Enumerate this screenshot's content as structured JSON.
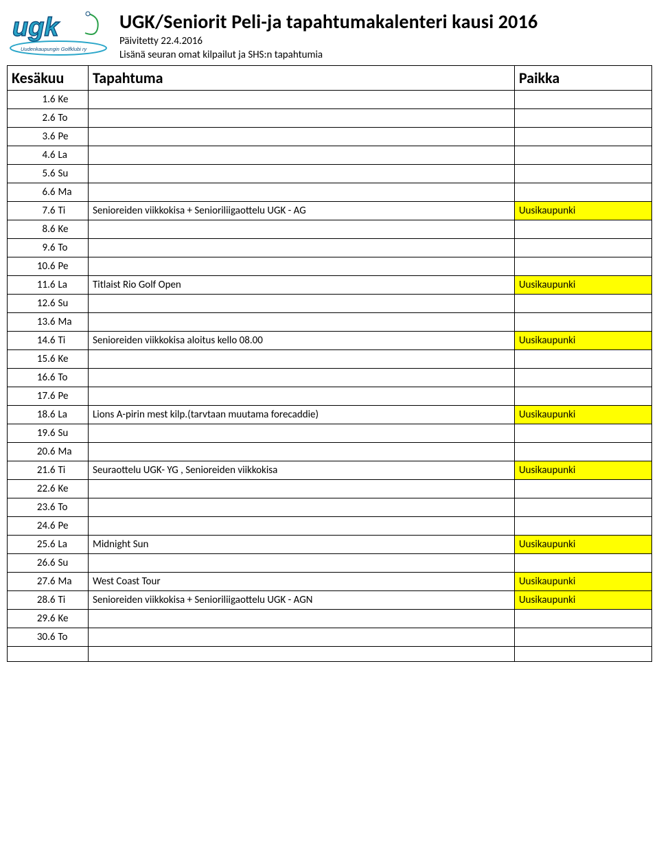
{
  "colors": {
    "highlight": "#ffff00",
    "border": "#000000",
    "background": "#ffffff",
    "text": "#000000",
    "logo_blue": "#2aa6c9",
    "logo_dark": "#0b4a7a",
    "logo_green": "#2aa04a"
  },
  "header": {
    "title": "UGK/Seniorit  Peli-ja tapahtumakalenteri kausi 2016",
    "updated": "Päivitetty 22.4.2016",
    "note": "Lisänä seuran omat kilpailut ja SHS:n tapahtumia",
    "logo_text": "ugk",
    "logo_sub": "Uudenkaupungin Golfklubi ry"
  },
  "table": {
    "head_month": "Kesäkuu",
    "head_event": "Tapahtuma",
    "head_place": "Paikka",
    "rows": [
      {
        "date": "1.6",
        "day": "Ke",
        "event": "",
        "place": "",
        "hl": false
      },
      {
        "date": "2.6",
        "day": "To",
        "event": "",
        "place": "",
        "hl": false
      },
      {
        "date": "3.6",
        "day": "Pe",
        "event": "",
        "place": "",
        "hl": false
      },
      {
        "date": "4.6",
        "day": "La",
        "event": "",
        "place": "",
        "hl": false
      },
      {
        "date": "5.6",
        "day": "Su",
        "event": "",
        "place": "",
        "hl": false
      },
      {
        "date": "6.6",
        "day": "Ma",
        "event": "",
        "place": "",
        "hl": false
      },
      {
        "date": "7.6",
        "day": "Ti",
        "event": "Senioreiden viikkokisa + Senioriliigaottelu UGK - AG",
        "place": "Uusikaupunki",
        "hl": true
      },
      {
        "date": "8.6",
        "day": "Ke",
        "event": "",
        "place": "",
        "hl": false
      },
      {
        "date": "9.6",
        "day": "To",
        "event": "",
        "place": "",
        "hl": false
      },
      {
        "date": "10.6",
        "day": "Pe",
        "event": "",
        "place": "",
        "hl": false
      },
      {
        "date": "11.6",
        "day": "La",
        "event": "Titlaist Rio Golf Open",
        "place": "Uusikaupunki",
        "hl": true
      },
      {
        "date": "12.6",
        "day": "Su",
        "event": "",
        "place": "",
        "hl": false
      },
      {
        "date": "13.6",
        "day": "Ma",
        "event": "",
        "place": "",
        "hl": false
      },
      {
        "date": "14.6",
        "day": "Ti",
        "event": " Senioreiden viikkokisa aloitus kello  08.00",
        "place": "Uusikaupunki",
        "hl": true
      },
      {
        "date": "15.6",
        "day": "Ke",
        "event": "",
        "place": "",
        "hl": false
      },
      {
        "date": "16.6",
        "day": "To",
        "event": "",
        "place": "",
        "hl": false
      },
      {
        "date": "17.6",
        "day": "Pe",
        "event": "",
        "place": "",
        "hl": false
      },
      {
        "date": "18.6",
        "day": "La",
        "event": "Lions A-pirin mest kilp.(tarvtaan muutama forecaddie)",
        "place": "Uusikaupunki",
        "hl": true
      },
      {
        "date": "19.6",
        "day": "Su",
        "event": "",
        "place": "",
        "hl": false
      },
      {
        "date": "20.6",
        "day": "Ma",
        "event": "",
        "place": "",
        "hl": false
      },
      {
        "date": "21.6",
        "day": "Ti",
        "event": " Seuraottelu UGK- YG ,  Senioreiden viikkokisa",
        "place": "Uusikaupunki",
        "hl": true
      },
      {
        "date": "22.6",
        "day": "Ke",
        "event": "",
        "place": "",
        "hl": false
      },
      {
        "date": "23.6",
        "day": "To",
        "event": "",
        "place": "",
        "hl": false
      },
      {
        "date": "24.6",
        "day": "Pe",
        "event": "",
        "place": "",
        "hl": false
      },
      {
        "date": "25.6",
        "day": "La",
        "event": "Midnight Sun",
        "place": "Uusikaupunki",
        "hl": true
      },
      {
        "date": "26.6",
        "day": "Su",
        "event": "",
        "place": "",
        "hl": false
      },
      {
        "date": "27.6",
        "day": "Ma",
        "event": "West Coast Tour",
        "place": "Uusikaupunki",
        "hl": true
      },
      {
        "date": "28.6",
        "day": "Ti",
        "event": "Senioreiden viikkokisa + Senioriliigaottelu UGK - AGN",
        "place": "Uusikaupunki",
        "hl": true
      },
      {
        "date": "29.6",
        "day": "Ke",
        "event": "",
        "place": "",
        "hl": false
      },
      {
        "date": "30.6",
        "day": "To",
        "event": "",
        "place": "",
        "hl": false
      },
      {
        "date": "",
        "day": "",
        "event": "",
        "place": "",
        "hl": false
      }
    ]
  }
}
